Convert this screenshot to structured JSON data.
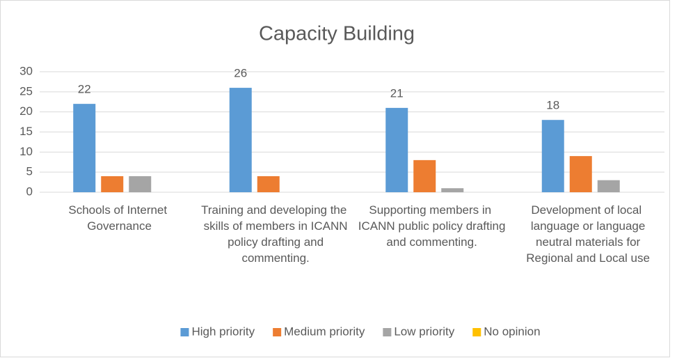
{
  "chart_data": {
    "type": "bar",
    "title": "Capacity Building",
    "categories": [
      "Schools of Internet Governance",
      "Training and developing the skills of members in ICANN policy drafting and commenting.",
      "Supporting members in ICANN public policy drafting and commenting.",
      "Development of local language or language neutral materials for Regional and Local use"
    ],
    "series": [
      {
        "name": "High priority",
        "color": "#5b9bd5",
        "values": [
          22,
          26,
          21,
          18
        ]
      },
      {
        "name": "Medium priority",
        "color": "#ed7d31",
        "values": [
          4,
          4,
          8,
          9
        ]
      },
      {
        "name": "Low priority",
        "color": "#a5a5a5",
        "values": [
          4,
          0,
          1,
          3
        ]
      },
      {
        "name": "No opinion",
        "color": "#ffc000",
        "values": [
          0,
          0,
          0,
          0
        ]
      }
    ],
    "ylim": [
      0,
      30
    ],
    "yticks": [
      0,
      5,
      10,
      15,
      20,
      25,
      30
    ],
    "grid": true,
    "legend": "bottom"
  }
}
